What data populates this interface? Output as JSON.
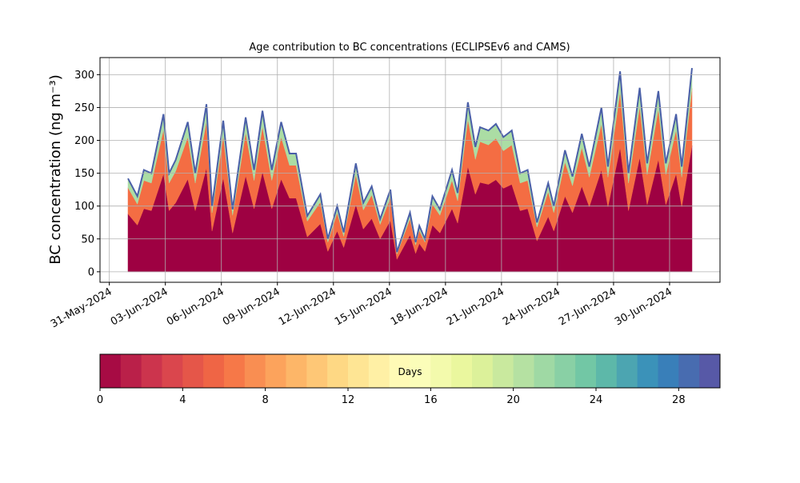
{
  "chart_data": {
    "type": "stacked_area",
    "title": "Age contribution to BC concentrations (ECLIPSEv6 and CAMS)",
    "y_label": "BC concentration (ng m⁻³)",
    "x": [
      1.0,
      1.5,
      1.85,
      2.25,
      2.9,
      3.2,
      3.55,
      4.2,
      4.6,
      5.2,
      5.5,
      6.1,
      6.6,
      7.3,
      7.75,
      8.2,
      8.7,
      9.2,
      9.65,
      10.0,
      10.6,
      11.3,
      11.7,
      12.2,
      12.55,
      13.2,
      13.6,
      14.05,
      14.5,
      15.05,
      15.4,
      16.1,
      16.4,
      16.6,
      16.9,
      17.3,
      17.7,
      18.35,
      18.65,
      19.2,
      19.6,
      19.85,
      20.3,
      20.7,
      21.1,
      21.55,
      22.0,
      22.4,
      22.9,
      23.5,
      23.8,
      24.4,
      24.8,
      25.3,
      25.7,
      26.35,
      26.7,
      27.35,
      27.8,
      28.4,
      28.8,
      29.4,
      29.8,
      30.35,
      30.65,
      31.2
    ],
    "series": [
      {
        "color": "#9e0142",
        "values": [
          88,
          71,
          96,
          93,
          149,
          93,
          105,
          141,
          93,
          158,
          62,
          143,
          59,
          146,
          96,
          152,
          96,
          141,
          112,
          112,
          53,
          73,
          31,
          62,
          37,
          102,
          65,
          81,
          50,
          78,
          19,
          56,
          28,
          43,
          31,
          71,
          59,
          96,
          74,
          160,
          118,
          136,
          133,
          140,
          127,
          133,
          93,
          96,
          47,
          84,
          62,
          115,
          90,
          130,
          99,
          155,
          99,
          189,
          93,
          174,
          102,
          171,
          102,
          149,
          99,
          192
        ]
      },
      {
        "color": "#f46d43",
        "values": [
          40,
          32,
          43,
          42,
          67,
          42,
          48,
          64,
          42,
          71,
          28,
          64,
          27,
          66,
          43,
          69,
          43,
          64,
          50,
          50,
          24,
          33,
          14,
          28,
          17,
          46,
          29,
          36,
          22,
          35,
          8,
          25,
          13,
          20,
          14,
          32,
          27,
          43,
          34,
          72,
          53,
          62,
          60,
          63,
          57,
          60,
          42,
          43,
          21,
          38,
          28,
          52,
          41,
          59,
          45,
          70,
          45,
          85,
          42,
          78,
          46,
          77,
          46,
          67,
          45,
          87
        ]
      },
      {
        "color": "#abdda4",
        "values": [
          14,
          12,
          16,
          15,
          24,
          15,
          17,
          23,
          15,
          26,
          10,
          23,
          9,
          23,
          16,
          24,
          16,
          23,
          18,
          18,
          8,
          12,
          5,
          10,
          6,
          17,
          11,
          13,
          8,
          12,
          3,
          9,
          4,
          7,
          5,
          12,
          9,
          16,
          12,
          26,
          19,
          22,
          22,
          22,
          21,
          22,
          15,
          16,
          7,
          13,
          10,
          18,
          14,
          21,
          16,
          25,
          16,
          31,
          15,
          28,
          17,
          27,
          17,
          24,
          16,
          31
        ]
      }
    ],
    "line_color": "#4a5fa8",
    "xlim": [
      -0.5,
      32.7
    ],
    "xticks": [
      {
        "value": 0,
        "label": "31-May-2024"
      },
      {
        "value": 3,
        "label": "03-Jun-2024"
      },
      {
        "value": 6,
        "label": "06-Jun-2024"
      },
      {
        "value": 9,
        "label": "09-Jun-2024"
      },
      {
        "value": 12,
        "label": "12-Jun-2024"
      },
      {
        "value": 15,
        "label": "15-Jun-2024"
      },
      {
        "value": 18,
        "label": "18-Jun-2024"
      },
      {
        "value": 21,
        "label": "21-Jun-2024"
      },
      {
        "value": 24,
        "label": "24-Jun-2024"
      },
      {
        "value": 27,
        "label": "27-Jun-2024"
      },
      {
        "value": 30,
        "label": "30-Jun-2024"
      }
    ],
    "ylim": [
      -16,
      326
    ],
    "yticks": [
      0,
      50,
      100,
      150,
      200,
      250,
      300
    ],
    "grid": true,
    "colorbar": {
      "label": "Days",
      "lim": [
        0,
        30
      ],
      "ticks": [
        0,
        4,
        8,
        12,
        16,
        20,
        24,
        28
      ],
      "levels": 30,
      "colormap": [
        "#9e0142",
        "#d53e4f",
        "#f46d43",
        "#fdae61",
        "#fee08b",
        "#ffffbf",
        "#e6f598",
        "#abdda4",
        "#66c2a5",
        "#3288bd",
        "#5e4fa2"
      ]
    }
  }
}
